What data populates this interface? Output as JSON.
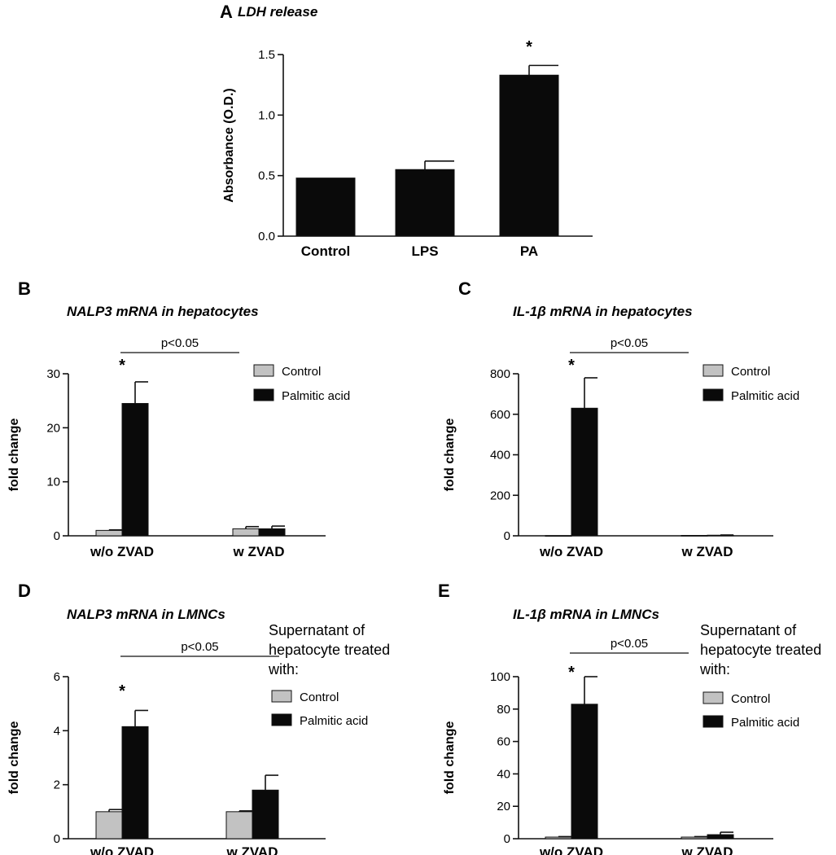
{
  "colors": {
    "control": "#c2c2c2",
    "treated": "#0a0a0a",
    "axis": "#111111"
  },
  "chart_data": [
    {
      "id": "A",
      "type": "bar",
      "panel_label": "A",
      "title": "LDH release",
      "ylabel": "Absorbance (O.D.)",
      "ylim": [
        0,
        1.5
      ],
      "yticks": [
        "0.0",
        "0.5",
        "1.0",
        "1.5"
      ],
      "categories": [
        "Control",
        "LPS",
        "PA"
      ],
      "series": [
        {
          "values": [
            0.48,
            0.55,
            1.33
          ],
          "errors": [
            0,
            0.07,
            0.08
          ]
        }
      ],
      "annotations": [
        {
          "text": "*",
          "category": "PA"
        }
      ]
    },
    {
      "id": "B",
      "type": "bar",
      "panel_label": "B",
      "title": "NALP3 mRNA in hepatocytes",
      "ylabel": "fold change",
      "ylim": [
        0,
        30
      ],
      "yticks": [
        "0",
        "10",
        "20",
        "30"
      ],
      "categories": [
        "w/o ZVAD",
        "w ZVAD"
      ],
      "series": [
        {
          "name": "Control",
          "values": [
            1.0,
            1.3
          ],
          "errors": [
            0.1,
            0.4
          ]
        },
        {
          "name": "Palmitic acid",
          "values": [
            24.5,
            1.3
          ],
          "errors": [
            4.0,
            0.5
          ]
        }
      ],
      "legend": {
        "position": "top-right",
        "header": []
      },
      "significance": {
        "text": "p<0.05"
      },
      "annotations": [
        {
          "text": "*",
          "category": "w/o ZVAD",
          "series": "Palmitic acid"
        }
      ]
    },
    {
      "id": "C",
      "type": "bar",
      "panel_label": "C",
      "title": "IL-1β mRNA in hepatocytes",
      "ylabel": "fold change",
      "ylim": [
        0,
        800
      ],
      "yticks": [
        "0",
        "200",
        "400",
        "600",
        "800"
      ],
      "categories": [
        "w/o ZVAD",
        "w ZVAD"
      ],
      "series": [
        {
          "name": "Control",
          "values": [
            1,
            2
          ],
          "errors": [
            0,
            0
          ]
        },
        {
          "name": "Palmitic acid",
          "values": [
            630,
            3
          ],
          "errors": [
            150,
            1
          ]
        }
      ],
      "legend": {
        "position": "top-right",
        "header": []
      },
      "significance": {
        "text": "p<0.05"
      },
      "annotations": [
        {
          "text": "*",
          "category": "w/o ZVAD",
          "series": "Palmitic acid"
        }
      ]
    },
    {
      "id": "D",
      "type": "bar",
      "panel_label": "D",
      "title": "NALP3 mRNA in LMNCs",
      "ylabel": "fold change",
      "ylim": [
        0,
        6
      ],
      "yticks": [
        "0",
        "2",
        "4",
        "6"
      ],
      "categories": [
        "w/o ZVAD",
        "w ZVAD"
      ],
      "series": [
        {
          "name": "Control",
          "values": [
            1.0,
            1.0
          ],
          "errors": [
            0.08,
            0.03
          ]
        },
        {
          "name": "Palmitic acid",
          "values": [
            4.15,
            1.8
          ],
          "errors": [
            0.6,
            0.55
          ]
        }
      ],
      "legend": {
        "position": "top-right",
        "header": [
          "Supernatant of",
          "hepatocyte treated",
          "with:"
        ]
      },
      "significance": {
        "text": "p<0.05"
      },
      "annotations": [
        {
          "text": "*",
          "category": "w/o ZVAD",
          "series": "Palmitic acid"
        }
      ]
    },
    {
      "id": "E",
      "type": "bar",
      "panel_label": "E",
      "title": "IL-1β mRNA in LMNCs",
      "ylabel": "fold change",
      "ylim": [
        0,
        100
      ],
      "yticks": [
        "0",
        "20",
        "40",
        "60",
        "80",
        "100"
      ],
      "categories": [
        "w/o ZVAD",
        "w ZVAD"
      ],
      "series": [
        {
          "name": "Control",
          "values": [
            1,
            1
          ],
          "errors": [
            0.3,
            0.3
          ]
        },
        {
          "name": "Palmitic acid",
          "values": [
            83,
            2.5
          ],
          "errors": [
            17,
            1.5
          ]
        }
      ],
      "legend": {
        "position": "top-right",
        "header": [
          "Supernatant of",
          "hepatocyte treated",
          "with:"
        ]
      },
      "significance": {
        "text": "p<0.05"
      },
      "annotations": [
        {
          "text": "*",
          "category": "w/o ZVAD",
          "series": "Palmitic acid"
        }
      ]
    }
  ]
}
